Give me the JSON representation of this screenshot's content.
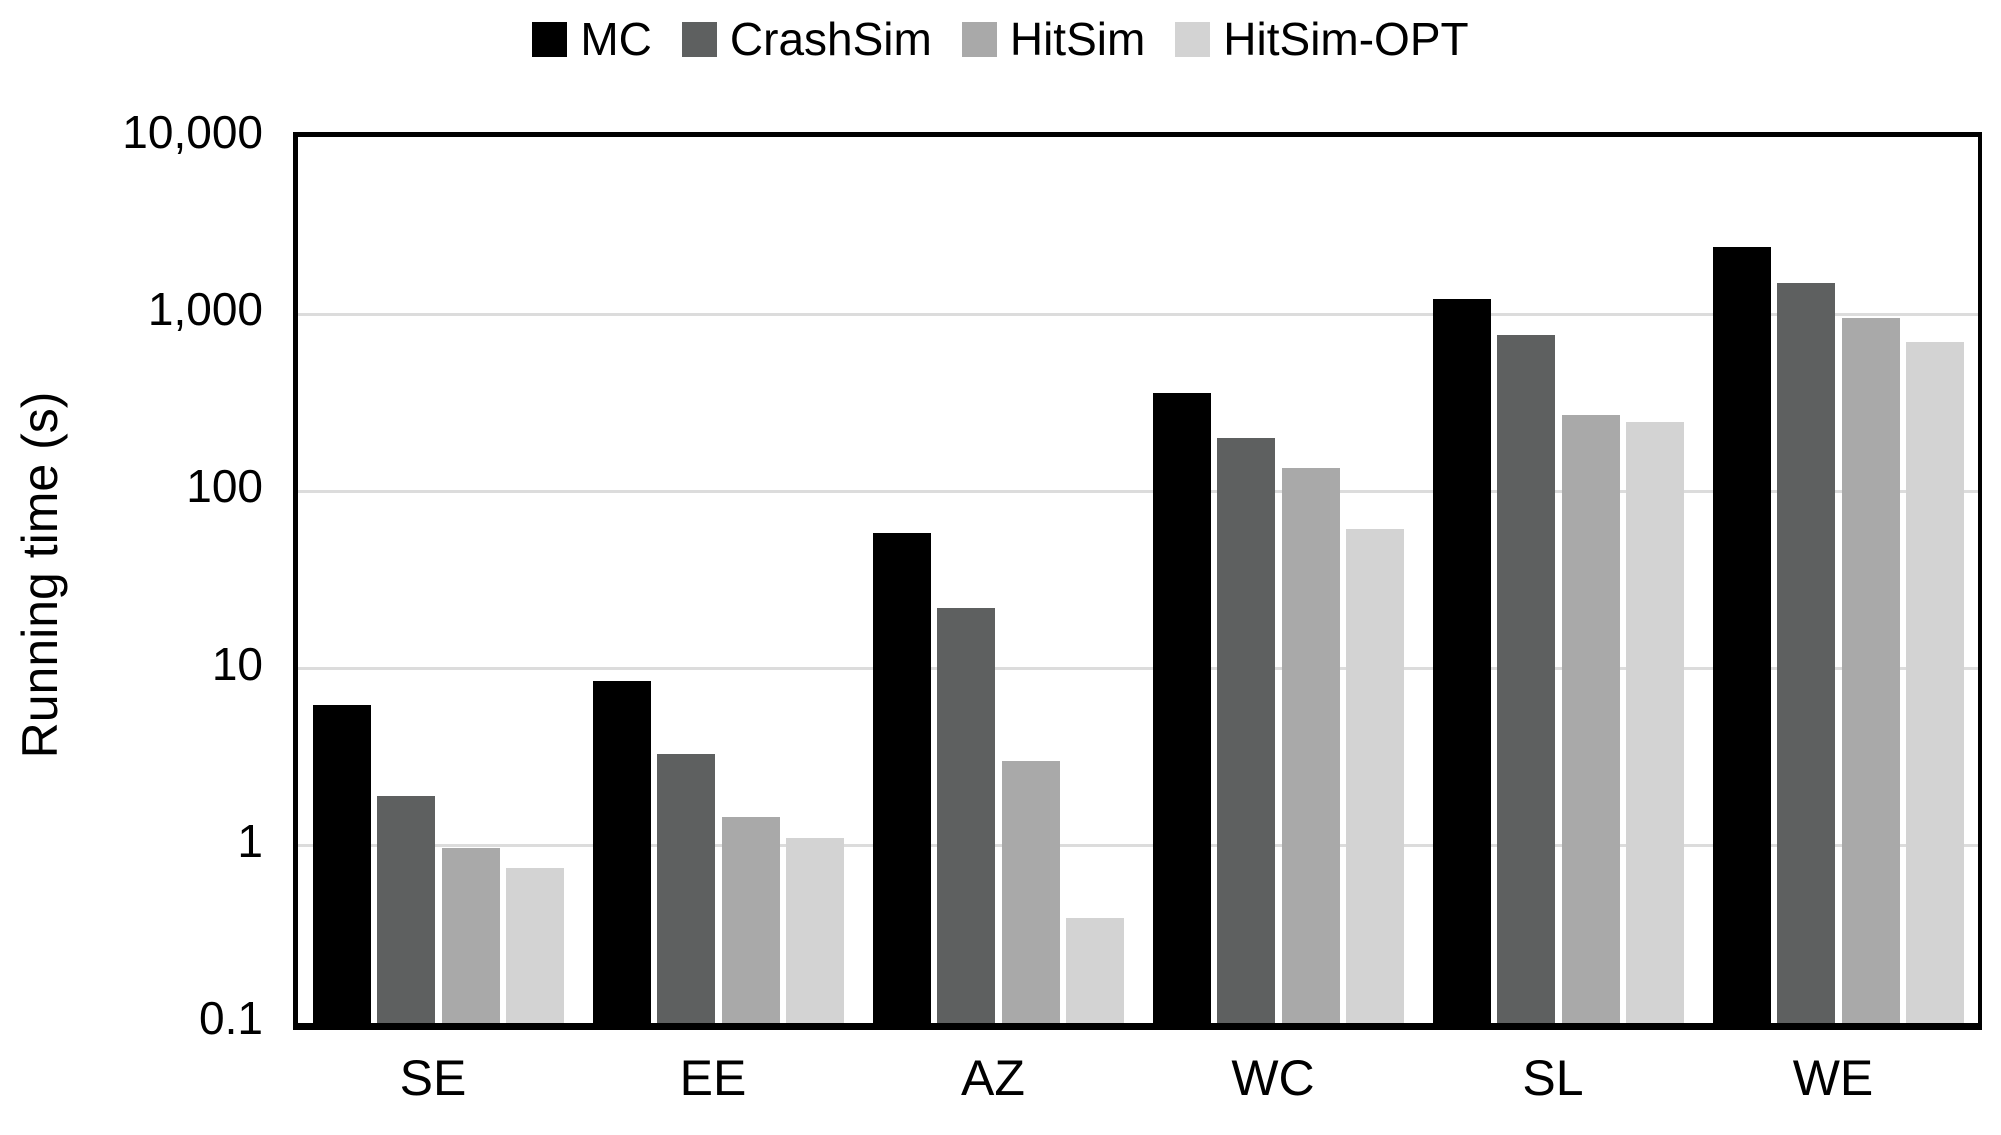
{
  "chart_data": {
    "type": "bar",
    "title": "",
    "ylabel": "Running time (s)",
    "xlabel": "",
    "yscale": "log",
    "ylim": [
      0.1,
      10000
    ],
    "decades": 5,
    "grid": "horizontal",
    "gridline_color": "#dcdcdc",
    "axis_color": "#000000",
    "background_color": "#ffffff",
    "legend_position": "top",
    "yticks": [
      {
        "value": 10000,
        "label": "10,000"
      },
      {
        "value": 1000,
        "label": "1,000"
      },
      {
        "value": 100,
        "label": "100"
      },
      {
        "value": 10,
        "label": "10"
      },
      {
        "value": 1,
        "label": "1"
      },
      {
        "value": 0.1,
        "label": "0.1"
      }
    ],
    "categories": [
      "SE",
      "EE",
      "AZ",
      "WC",
      "SL",
      "WE"
    ],
    "series": [
      {
        "name": "MC",
        "color": "#000000",
        "values": [
          6.2,
          8.5,
          58,
          360,
          1220,
          2400
        ]
      },
      {
        "name": "CrashSim",
        "color": "#5e6060",
        "values": [
          1.9,
          3.3,
          22,
          200,
          760,
          1500
        ]
      },
      {
        "name": "HitSim",
        "color": "#a9a9a9",
        "values": [
          0.97,
          1.45,
          3.0,
          135,
          270,
          950
        ]
      },
      {
        "name": "HitSim-OPT",
        "color": "#d3d3d3",
        "values": [
          0.75,
          1.1,
          0.39,
          61,
          245,
          700
        ]
      }
    ]
  }
}
